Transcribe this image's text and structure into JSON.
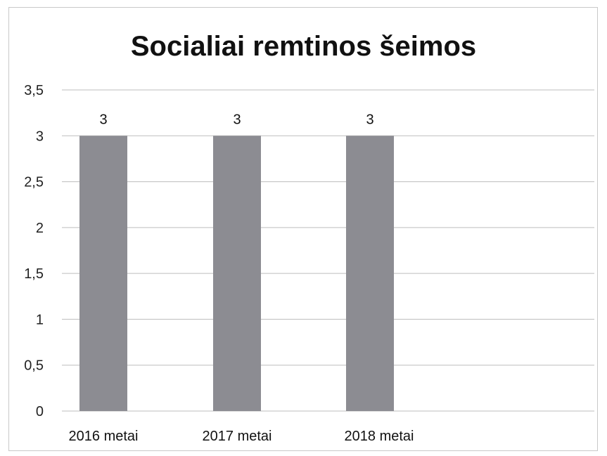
{
  "chart_data": {
    "type": "bar",
    "title": "Socialiai remtinos šeimos",
    "categories": [
      "2016 metai",
      "2017 metai",
      "2018 metai"
    ],
    "values": [
      3,
      3,
      3
    ],
    "data_labels": [
      "3",
      "3",
      "3"
    ],
    "y_ticks": [
      "0",
      "0,5",
      "1",
      "1,5",
      "2",
      "2,5",
      "3",
      "3,5"
    ],
    "ylim": [
      0,
      3.5
    ],
    "grid": true,
    "legend": "none",
    "bar_color": "#8c8c92"
  }
}
